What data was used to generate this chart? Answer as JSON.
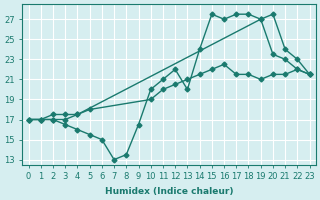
{
  "xlabel": "Humidex (Indice chaleur)",
  "bg_color": "#d6eef0",
  "grid_color": "#ffffff",
  "line_color": "#1a7a6e",
  "xlim": [
    -0.5,
    23.5
  ],
  "ylim": [
    12.5,
    28.5
  ],
  "xticks": [
    0,
    1,
    2,
    3,
    4,
    5,
    6,
    7,
    8,
    9,
    10,
    11,
    12,
    13,
    14,
    15,
    16,
    17,
    18,
    19,
    20,
    21,
    22,
    23
  ],
  "yticks": [
    13,
    15,
    17,
    19,
    21,
    23,
    25,
    27
  ],
  "line1_x": [
    0,
    1,
    2,
    3,
    4,
    5,
    10,
    11,
    12,
    13,
    14,
    15,
    16,
    17,
    18,
    19,
    20,
    21,
    22,
    23
  ],
  "line1_y": [
    17,
    17,
    17,
    17,
    17.5,
    18,
    19,
    20,
    20.5,
    21,
    21.5,
    22,
    22.5,
    21.5,
    21.5,
    21,
    21.5,
    21.5,
    22,
    21.5
  ],
  "line2_x": [
    0,
    1,
    2,
    3,
    4,
    5,
    6,
    7,
    8,
    9,
    10,
    11,
    12,
    13,
    14,
    15,
    16,
    17,
    18,
    19,
    20,
    21,
    22,
    23
  ],
  "line2_y": [
    17,
    17,
    17,
    16.5,
    16,
    15.5,
    15,
    13,
    13.5,
    16.5,
    20,
    21,
    22,
    20,
    24,
    27.5,
    27,
    27.5,
    27.5,
    27,
    23.5,
    23,
    22,
    21.5
  ],
  "line3_x": [
    0,
    1,
    2,
    3,
    4,
    19,
    20,
    21,
    22,
    23
  ],
  "line3_y": [
    17,
    17,
    17.5,
    17.5,
    17.5,
    27,
    27.5,
    24,
    23,
    21.5
  ]
}
